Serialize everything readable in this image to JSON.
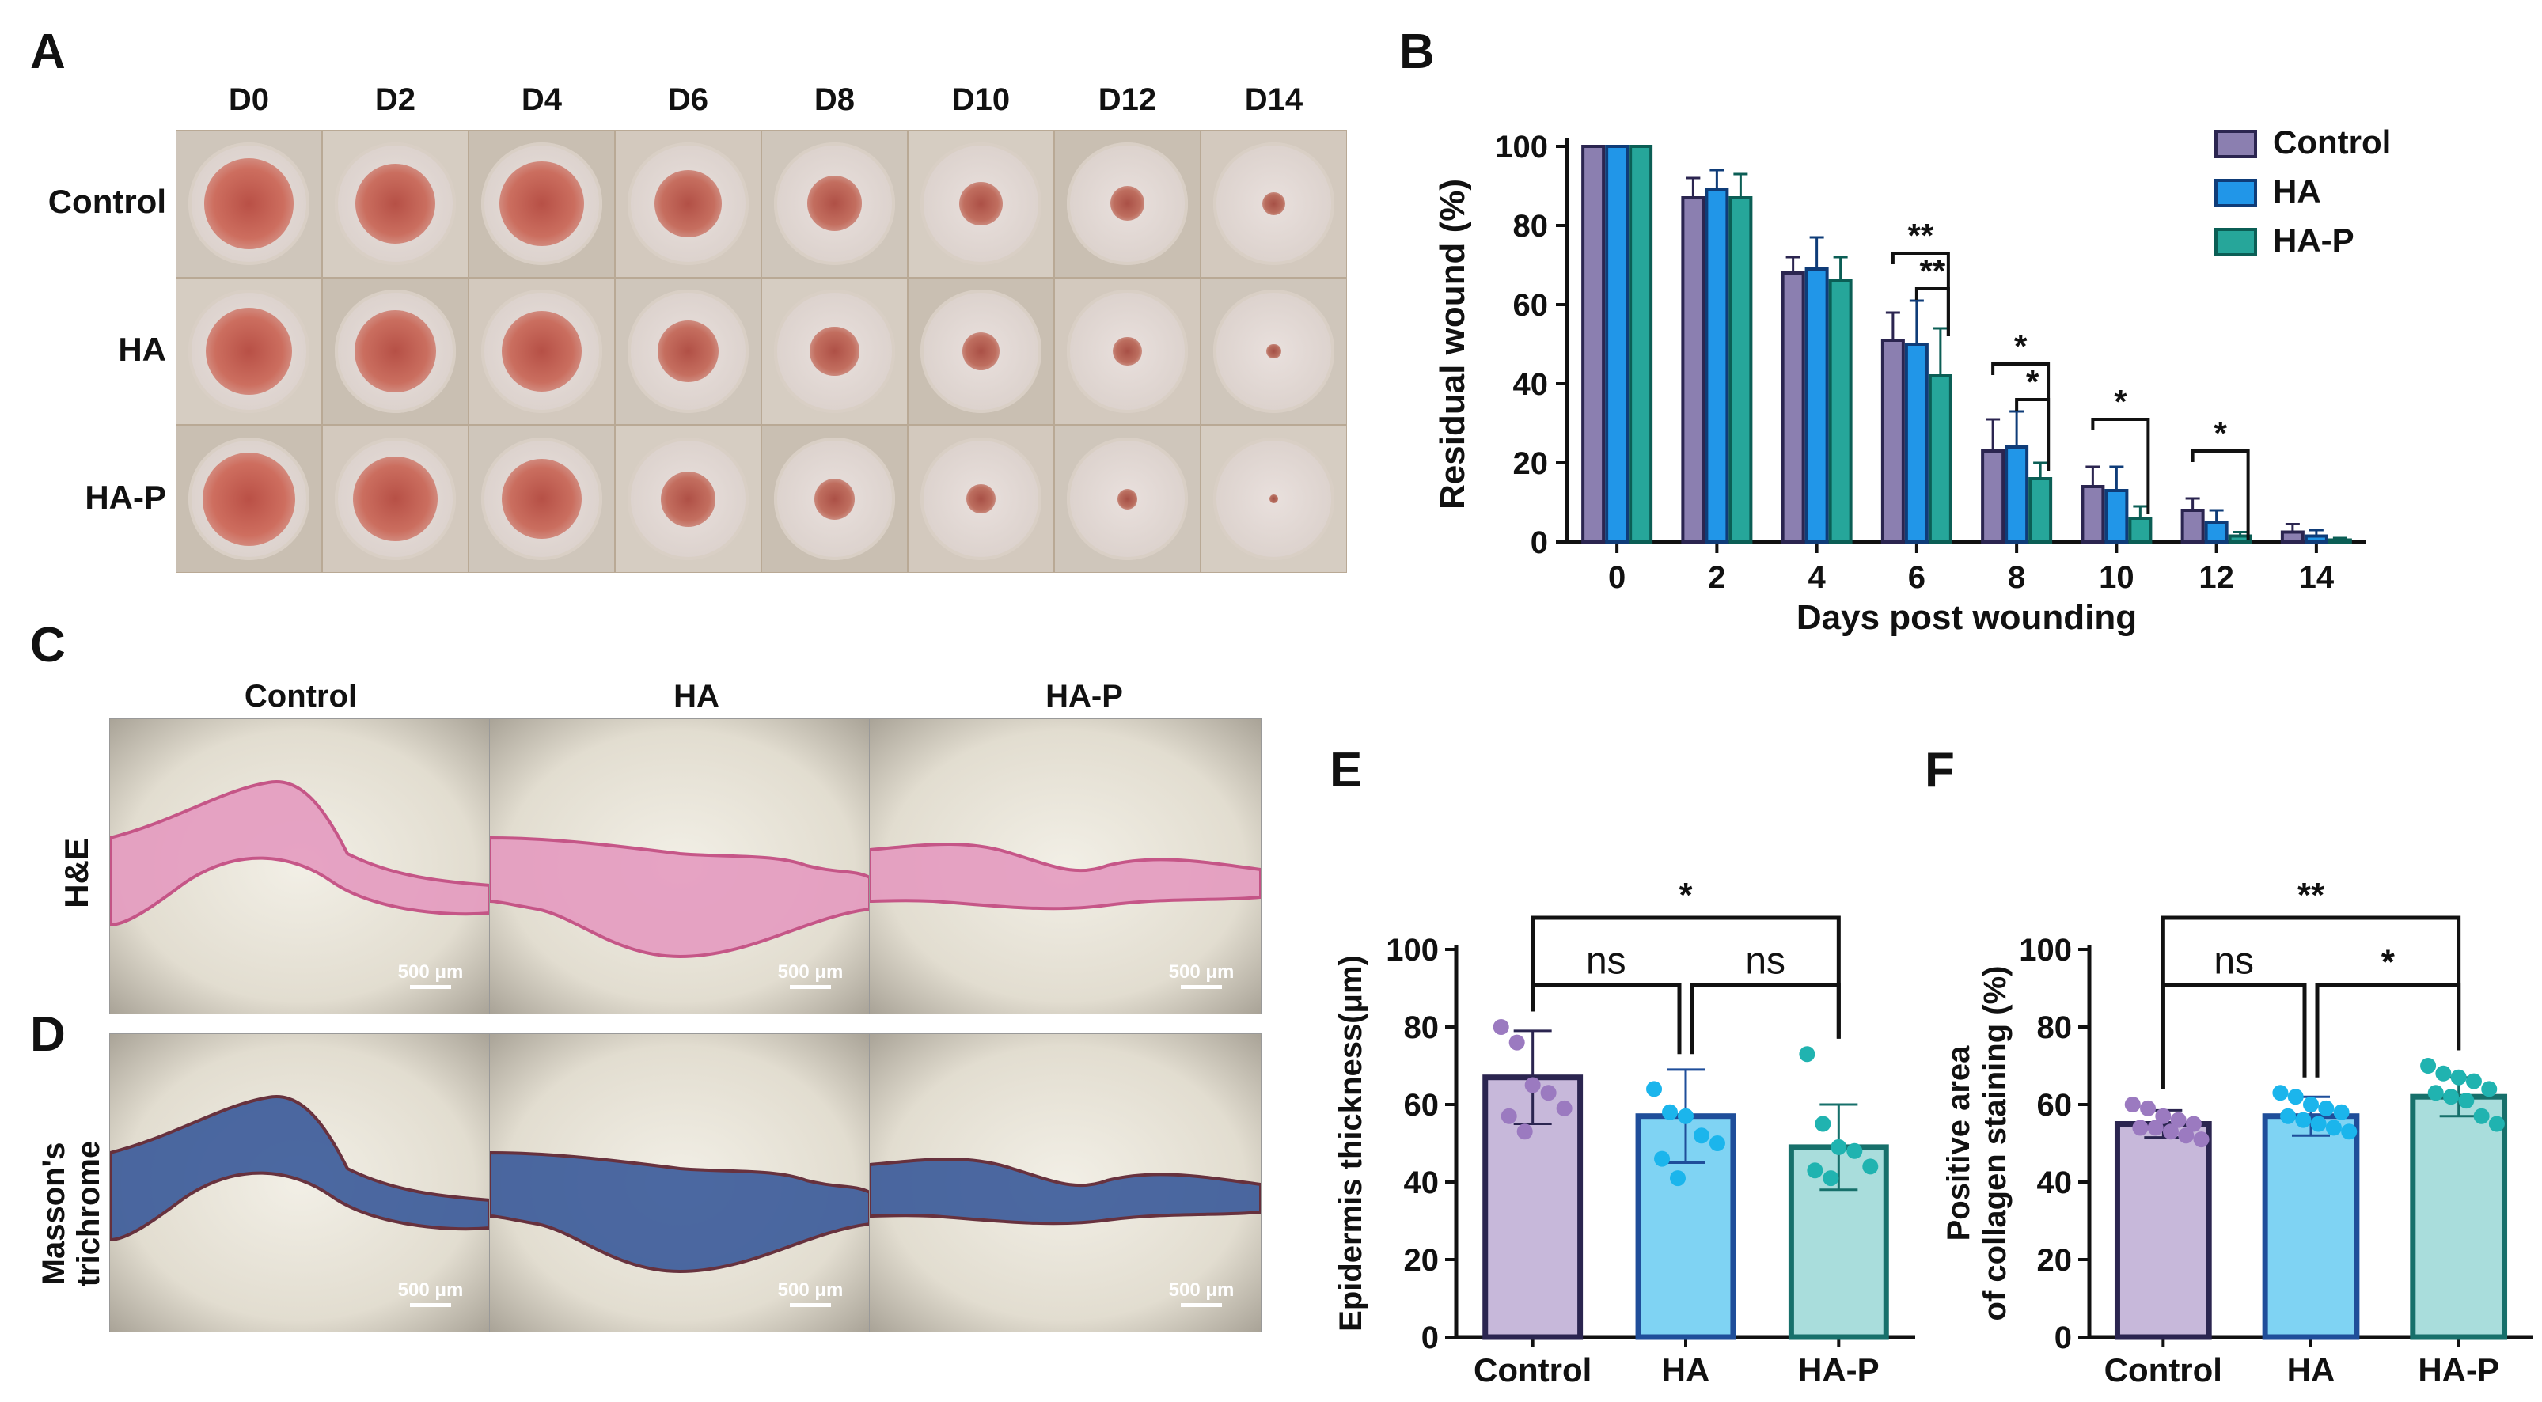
{
  "panels": {
    "A": "A",
    "B": "B",
    "C": "C",
    "D": "D",
    "E": "E",
    "F": "F"
  },
  "panel_a": {
    "days": [
      "D0",
      "D2",
      "D4",
      "D6",
      "D8",
      "D10",
      "D12",
      "D14"
    ],
    "groups": [
      "Control",
      "HA",
      "HA-P"
    ],
    "lesion_sizes": [
      [
        0.62,
        0.55,
        0.58,
        0.46,
        0.38,
        0.3,
        0.24,
        0.16
      ],
      [
        0.6,
        0.56,
        0.55,
        0.42,
        0.34,
        0.26,
        0.2,
        0.1
      ],
      [
        0.64,
        0.58,
        0.55,
        0.38,
        0.28,
        0.2,
        0.14,
        0.06
      ]
    ]
  },
  "panel_c": {
    "columns": [
      "Control",
      "HA",
      "HA-P"
    ],
    "row_label": "H&E",
    "scale_label": "500 μm"
  },
  "panel_d": {
    "row_label_line1": "Masson's",
    "row_label_line2": "trichrome",
    "scale_label": "500 μm"
  },
  "chart_data": [
    {
      "id": "B",
      "type": "bar",
      "xlabel": "Days post wounding",
      "ylabel": "Residual wound (%)",
      "ylim": [
        0,
        100
      ],
      "yticks": [
        0,
        20,
        40,
        60,
        80,
        100
      ],
      "categories": [
        "0",
        "2",
        "4",
        "6",
        "8",
        "10",
        "12",
        "14"
      ],
      "series": [
        {
          "name": "Control",
          "color": "#8B7FB0",
          "edge": "#2B2550",
          "values": [
            100,
            87,
            68,
            51,
            23,
            14,
            8,
            2.5
          ],
          "errors": [
            0,
            5,
            4,
            7,
            8,
            5,
            3,
            2
          ]
        },
        {
          "name": "HA",
          "color": "#2196E8",
          "edge": "#0F3C78",
          "values": [
            100,
            89,
            69,
            50,
            24,
            13,
            5,
            1.5
          ],
          "errors": [
            0,
            5,
            8,
            11,
            9,
            6,
            3,
            1.5
          ]
        },
        {
          "name": "HA-P",
          "color": "#26A69A",
          "edge": "#0B5E55",
          "values": [
            100,
            87,
            66,
            42,
            16,
            6,
            1.5,
            0.5
          ],
          "errors": [
            0,
            6,
            6,
            12,
            4,
            3,
            1,
            0.5
          ]
        }
      ],
      "annotations": [
        {
          "label": "**",
          "category": "6",
          "from": "Control",
          "to": "HA-P",
          "level": "high"
        },
        {
          "label": "**",
          "category": "6",
          "from": "HA",
          "to": "HA-P",
          "level": "low"
        },
        {
          "label": "*",
          "category": "8",
          "from": "Control",
          "to": "HA-P",
          "level": "high"
        },
        {
          "label": "*",
          "category": "8",
          "from": "HA",
          "to": "HA-P",
          "level": "low"
        },
        {
          "label": "*",
          "category": "10",
          "from": "Control",
          "to": "HA-P",
          "level": "high"
        },
        {
          "label": "*",
          "category": "12",
          "from": "Control",
          "to": "HA-P",
          "level": "high"
        }
      ],
      "legend_position": "top-right"
    },
    {
      "id": "E",
      "type": "bar",
      "ylabel": "Epidermis thickness(μm)",
      "ylim": [
        0,
        100
      ],
      "yticks": [
        0,
        20,
        40,
        60,
        80,
        100
      ],
      "categories": [
        "Control",
        "HA",
        "HA-P"
      ],
      "values": [
        67,
        57,
        49
      ],
      "errors": [
        12,
        12,
        11
      ],
      "fills": [
        "#C7B8DA",
        "#7FD3F3",
        "#A9DDDC"
      ],
      "edges": [
        "#2B2550",
        "#1F4E9A",
        "#17706B"
      ],
      "dot_colors": [
        "#9B7AC0",
        "#1BB5EC",
        "#20B3B0"
      ],
      "points": [
        [
          80,
          76,
          65,
          63,
          59,
          57,
          53
        ],
        [
          64,
          58,
          57,
          52,
          50,
          46,
          41
        ],
        [
          73,
          55,
          49,
          48,
          44,
          43,
          41
        ]
      ],
      "comparisons": [
        {
          "label": "ns",
          "from": "Control",
          "to": "HA"
        },
        {
          "label": "ns",
          "from": "HA",
          "to": "HA-P"
        },
        {
          "label": "*",
          "from": "Control",
          "to": "HA-P"
        }
      ]
    },
    {
      "id": "F",
      "type": "bar",
      "ylabel_line1": "Positive area",
      "ylabel_line2": "of collagen staining (%)",
      "ylim": [
        0,
        100
      ],
      "yticks": [
        0,
        20,
        40,
        60,
        80,
        100
      ],
      "categories": [
        "Control",
        "HA",
        "HA-P"
      ],
      "values": [
        55,
        57,
        62
      ],
      "errors": [
        3.5,
        5,
        5
      ],
      "fills": [
        "#C7B8DA",
        "#7FD3F3",
        "#A9DDDC"
      ],
      "edges": [
        "#2B2550",
        "#1F4E9A",
        "#17706B"
      ],
      "dot_colors": [
        "#9B7AC0",
        "#1BB5EC",
        "#20B3B0"
      ],
      "points": [
        [
          60,
          59,
          57,
          56,
          55,
          54,
          54,
          53,
          52,
          51
        ],
        [
          63,
          62,
          60,
          59,
          58,
          57,
          56,
          55,
          54,
          53
        ],
        [
          70,
          68,
          67,
          66,
          64,
          63,
          62,
          61,
          57,
          55
        ]
      ],
      "comparisons": [
        {
          "label": "ns",
          "from": "Control",
          "to": "HA"
        },
        {
          "label": "*",
          "from": "HA",
          "to": "HA-P"
        },
        {
          "label": "**",
          "from": "Control",
          "to": "HA-P"
        }
      ]
    }
  ]
}
